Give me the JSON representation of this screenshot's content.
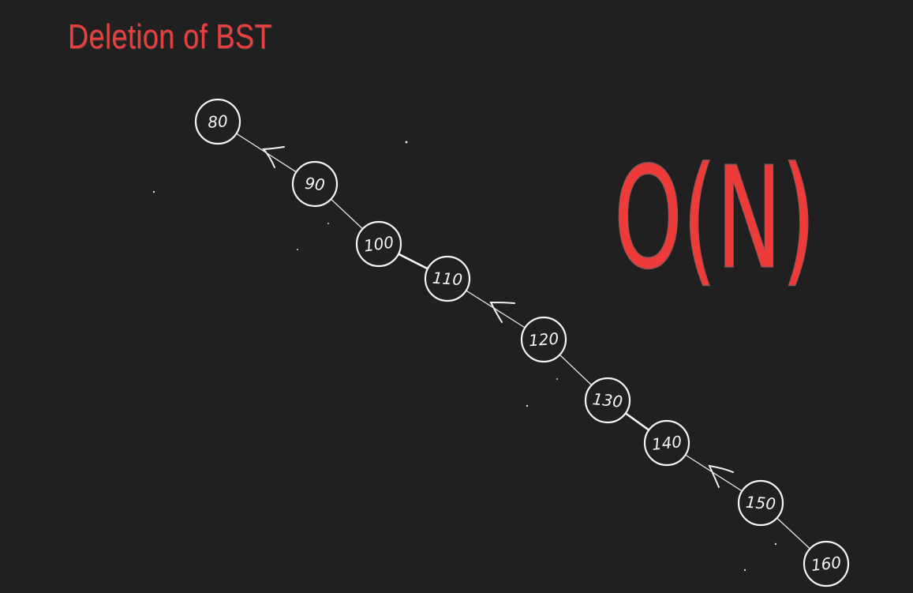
{
  "title": "Deletion of BST",
  "complexity": "O(N)",
  "colors": {
    "background": "#202020",
    "accent": "#ee3a38",
    "stroke": "#f4f4f4"
  },
  "nodes": [
    "80",
    "90",
    "100",
    "110",
    "120",
    "130",
    "140",
    "150",
    "160"
  ]
}
